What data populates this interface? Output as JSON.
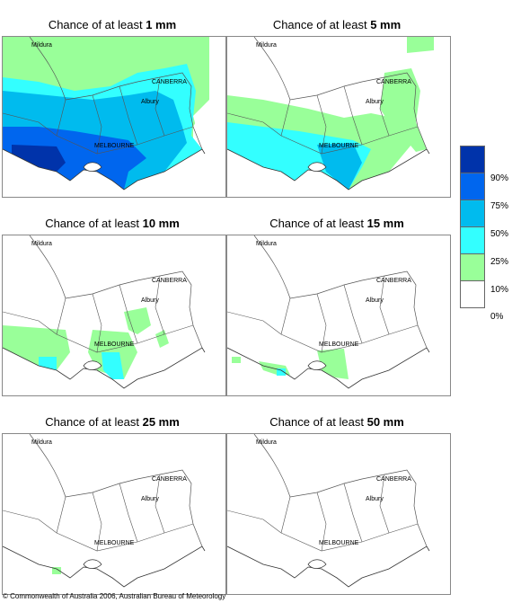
{
  "panels": [
    {
      "prefix": "Chance of at least ",
      "amount": "1 mm"
    },
    {
      "prefix": "Chance of at least ",
      "amount": "5 mm"
    },
    {
      "prefix": "Chance of at least ",
      "amount": "10 mm"
    },
    {
      "prefix": "Chance of at least ",
      "amount": "15 mm"
    },
    {
      "prefix": "Chance of at least ",
      "amount": "25 mm"
    },
    {
      "prefix": "Chance of at least ",
      "amount": "50 mm"
    }
  ],
  "places": {
    "mildura": "Mildura",
    "canberra": "CANBERRA",
    "albury": "Albury",
    "melbourne": "MELBOURNE"
  },
  "legend": {
    "labels": [
      "90%",
      "75%",
      "50%",
      "25%",
      "10%",
      "0%"
    ],
    "colors": [
      "#0033aa",
      "#0066ee",
      "#00bbee",
      "#33ffff",
      "#99ff99",
      "#ffffff"
    ]
  },
  "copyright": "© Commonwealth of Australia 2006, Australian Bureau of Meteorology"
}
